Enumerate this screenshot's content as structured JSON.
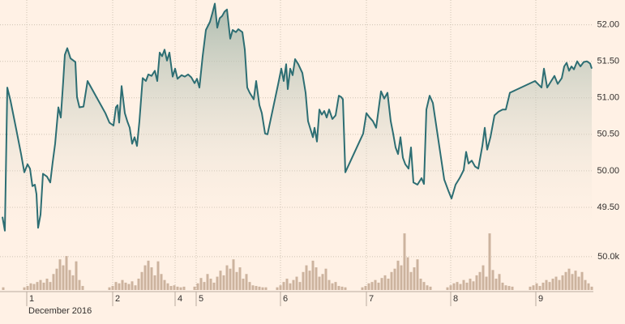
{
  "chart_data": [
    {
      "type": "area",
      "color": "#2d6e73",
      "fill": "#9fb3a6",
      "xlim": [
        0,
        732
      ],
      "ylim": [
        49.1,
        52.34
      ],
      "yticks": [
        {
          "value": 49.5,
          "label": "49.50"
        },
        {
          "value": 50,
          "label": "50.00"
        },
        {
          "value": 50.5,
          "label": "50.50"
        },
        {
          "value": 51,
          "label": "51.00"
        },
        {
          "value": 51.5,
          "label": "51.50"
        },
        {
          "value": 52,
          "label": "52.00"
        }
      ],
      "grid": true,
      "x": [
        3,
        6,
        9,
        13,
        20,
        26,
        30,
        34,
        37,
        40,
        43,
        45,
        47,
        50,
        53,
        58,
        62,
        65,
        68,
        72,
        75,
        78,
        80,
        83,
        87,
        93,
        95,
        98,
        103,
        108,
        130,
        135,
        140,
        143,
        145,
        147,
        150,
        154,
        157,
        160,
        163,
        166,
        169,
        172,
        176,
        180,
        183,
        187,
        191,
        194,
        197,
        200,
        203,
        206,
        209,
        213,
        216,
        219,
        224,
        228,
        232,
        236,
        240,
        243,
        246,
        250,
        254,
        259,
        262,
        265,
        268,
        271,
        274,
        277,
        280,
        284,
        287,
        291,
        294,
        299,
        302,
        305,
        308,
        313,
        316,
        320,
        323,
        327,
        330,
        343,
        347,
        350,
        353,
        355,
        358,
        361,
        364,
        368,
        373,
        377,
        380,
        383,
        386,
        388,
        391,
        394,
        397,
        400,
        403,
        406,
        410,
        414,
        418,
        421,
        423,
        426,
        448,
        452,
        456,
        460,
        464,
        467,
        470,
        474,
        478,
        482,
        485,
        488,
        491,
        494,
        497,
        500,
        504,
        507,
        510,
        515,
        520,
        523,
        526,
        530,
        534,
        548,
        553,
        557,
        562,
        567,
        572,
        575,
        578,
        582,
        586,
        590,
        595,
        598,
        601,
        605,
        610,
        615,
        620,
        624,
        629,
        660,
        668,
        671,
        675,
        680,
        684,
        688,
        693,
        696,
        699,
        702,
        705,
        708,
        712,
        716,
        720,
        724,
        728,
        730
      ],
      "values": [
        49.37,
        49.18,
        51.14,
        50.96,
        50.57,
        50.23,
        49.98,
        50.09,
        50.03,
        49.79,
        49.81,
        49.68,
        49.22,
        49.4,
        49.96,
        49.92,
        49.84,
        50.12,
        50.37,
        50.87,
        50.73,
        51.23,
        51.59,
        51.68,
        51.54,
        51.49,
        51.01,
        50.87,
        50.88,
        51.23,
        50.79,
        50.66,
        50.62,
        50.87,
        50.9,
        50.66,
        51.16,
        50.79,
        50.68,
        50.59,
        50.37,
        50.46,
        50.34,
        50.68,
        51.27,
        51.23,
        51.32,
        51.3,
        51.37,
        51.23,
        51.62,
        51.57,
        51.66,
        51.51,
        51.62,
        51.29,
        51.4,
        51.26,
        51.31,
        51.29,
        51.32,
        51.28,
        51.2,
        51.26,
        51.14,
        51.57,
        51.93,
        52.04,
        52.16,
        52.29,
        51.96,
        52.09,
        52.12,
        52.18,
        52.21,
        51.81,
        51.93,
        51.9,
        51.94,
        51.9,
        51.66,
        51.14,
        51.07,
        50.98,
        51.23,
        50.9,
        50.79,
        50.51,
        50.5,
        51.18,
        51.4,
        51.23,
        51.46,
        51.12,
        51.4,
        51.31,
        51.53,
        51.46,
        51.34,
        51.07,
        50.68,
        50.57,
        50.46,
        50.59,
        50.4,
        50.84,
        50.77,
        50.82,
        50.73,
        50.84,
        50.71,
        50.76,
        51.03,
        51.01,
        50.98,
        49.98,
        50.51,
        50.79,
        50.73,
        50.68,
        50.59,
        50.84,
        51.09,
        50.99,
        51.07,
        50.68,
        50.51,
        50.32,
        50.23,
        50.46,
        50.18,
        50.09,
        50.03,
        50.32,
        49.84,
        49.81,
        49.9,
        49.82,
        50.84,
        51.03,
        50.93,
        49.88,
        49.73,
        49.62,
        49.81,
        49.9,
        50.01,
        50.26,
        50.1,
        50.14,
        50.06,
        50.03,
        50.34,
        50.59,
        50.29,
        50.46,
        50.76,
        50.81,
        50.84,
        50.84,
        51.07,
        51.23,
        51.14,
        51.4,
        51.14,
        51.23,
        51.3,
        51.19,
        51.27,
        51.43,
        51.48,
        51.37,
        51.43,
        51.39,
        51.5,
        51.43,
        51.49,
        51.5,
        51.47,
        51.4
      ]
    },
    {
      "type": "bar",
      "color": "#ccb39e",
      "xlim": [
        0,
        732
      ],
      "ylim": [
        0,
        90000
      ],
      "yticks": [
        {
          "value": 50000,
          "label": "50.0k"
        }
      ],
      "xticks": [
        {
          "value": 33,
          "label": "1"
        },
        {
          "value": 139,
          "label": "2"
        },
        {
          "value": 216,
          "label": "4"
        },
        {
          "value": 242,
          "label": "5"
        },
        {
          "value": 346,
          "label": "6"
        },
        {
          "value": 452,
          "label": "7"
        },
        {
          "value": 556,
          "label": "8"
        },
        {
          "value": 661,
          "label": "9"
        }
      ],
      "annotation": "December 2016",
      "x": [
        4,
        30,
        34,
        38,
        42,
        46,
        50,
        54,
        58,
        62,
        66,
        70,
        74,
        78,
        82,
        86,
        90,
        94,
        98,
        102,
        135,
        139,
        143,
        147,
        151,
        155,
        159,
        163,
        167,
        171,
        175,
        179,
        183,
        187,
        191,
        195,
        199,
        203,
        207,
        211,
        215,
        219,
        223,
        227,
        240,
        244,
        248,
        252,
        256,
        260,
        264,
        268,
        272,
        276,
        280,
        284,
        288,
        292,
        296,
        300,
        304,
        308,
        312,
        316,
        320,
        324,
        328,
        342,
        346,
        350,
        354,
        358,
        362,
        366,
        370,
        374,
        378,
        382,
        386,
        390,
        394,
        398,
        402,
        406,
        410,
        414,
        418,
        422,
        426,
        447,
        451,
        455,
        459,
        463,
        467,
        471,
        475,
        479,
        483,
        487,
        491,
        495,
        499,
        503,
        507,
        511,
        515,
        519,
        523,
        527,
        531,
        552,
        556,
        560,
        564,
        568,
        572,
        576,
        580,
        584,
        588,
        592,
        596,
        600,
        604,
        608,
        612,
        616,
        620,
        624,
        628,
        632,
        654,
        658,
        662,
        666,
        670,
        674,
        678,
        682,
        686,
        690,
        694,
        698,
        702,
        706,
        710,
        714,
        718,
        722,
        726,
        730
      ],
      "values": [
        4000,
        4000,
        6000,
        10000,
        9000,
        12000,
        15000,
        11000,
        17000,
        12000,
        24000,
        32000,
        46000,
        37000,
        51000,
        30000,
        22000,
        43000,
        15000,
        6000,
        4000,
        6000,
        12000,
        10000,
        15000,
        11000,
        9000,
        13000,
        7000,
        17000,
        27000,
        37000,
        44000,
        34000,
        22000,
        43000,
        24000,
        15000,
        10000,
        6000,
        7000,
        5000,
        4000,
        5000,
        5000,
        10000,
        18000,
        12000,
        24000,
        17000,
        11000,
        20000,
        29000,
        22000,
        37000,
        32000,
        46000,
        27000,
        34000,
        17000,
        24000,
        12000,
        7000,
        6000,
        5000,
        4000,
        4000,
        4000,
        7000,
        12000,
        17000,
        10000,
        15000,
        20000,
        12000,
        27000,
        37000,
        29000,
        44000,
        34000,
        20000,
        24000,
        32000,
        15000,
        10000,
        12000,
        6000,
        5000,
        4000,
        4000,
        6000,
        10000,
        12000,
        15000,
        11000,
        18000,
        22000,
        17000,
        27000,
        32000,
        44000,
        37000,
        85000,
        49000,
        27000,
        34000,
        46000,
        17000,
        12000,
        7000,
        5000,
        4000,
        7000,
        10000,
        12000,
        9000,
        15000,
        11000,
        17000,
        13000,
        22000,
        27000,
        37000,
        20000,
        85000,
        30000,
        17000,
        24000,
        11000,
        7000,
        6000,
        5000,
        5000,
        7000,
        10000,
        6000,
        11000,
        15000,
        12000,
        17000,
        20000,
        15000,
        22000,
        27000,
        32000,
        24000,
        29000,
        20000,
        27000,
        15000,
        10000,
        5000
      ]
    }
  ]
}
